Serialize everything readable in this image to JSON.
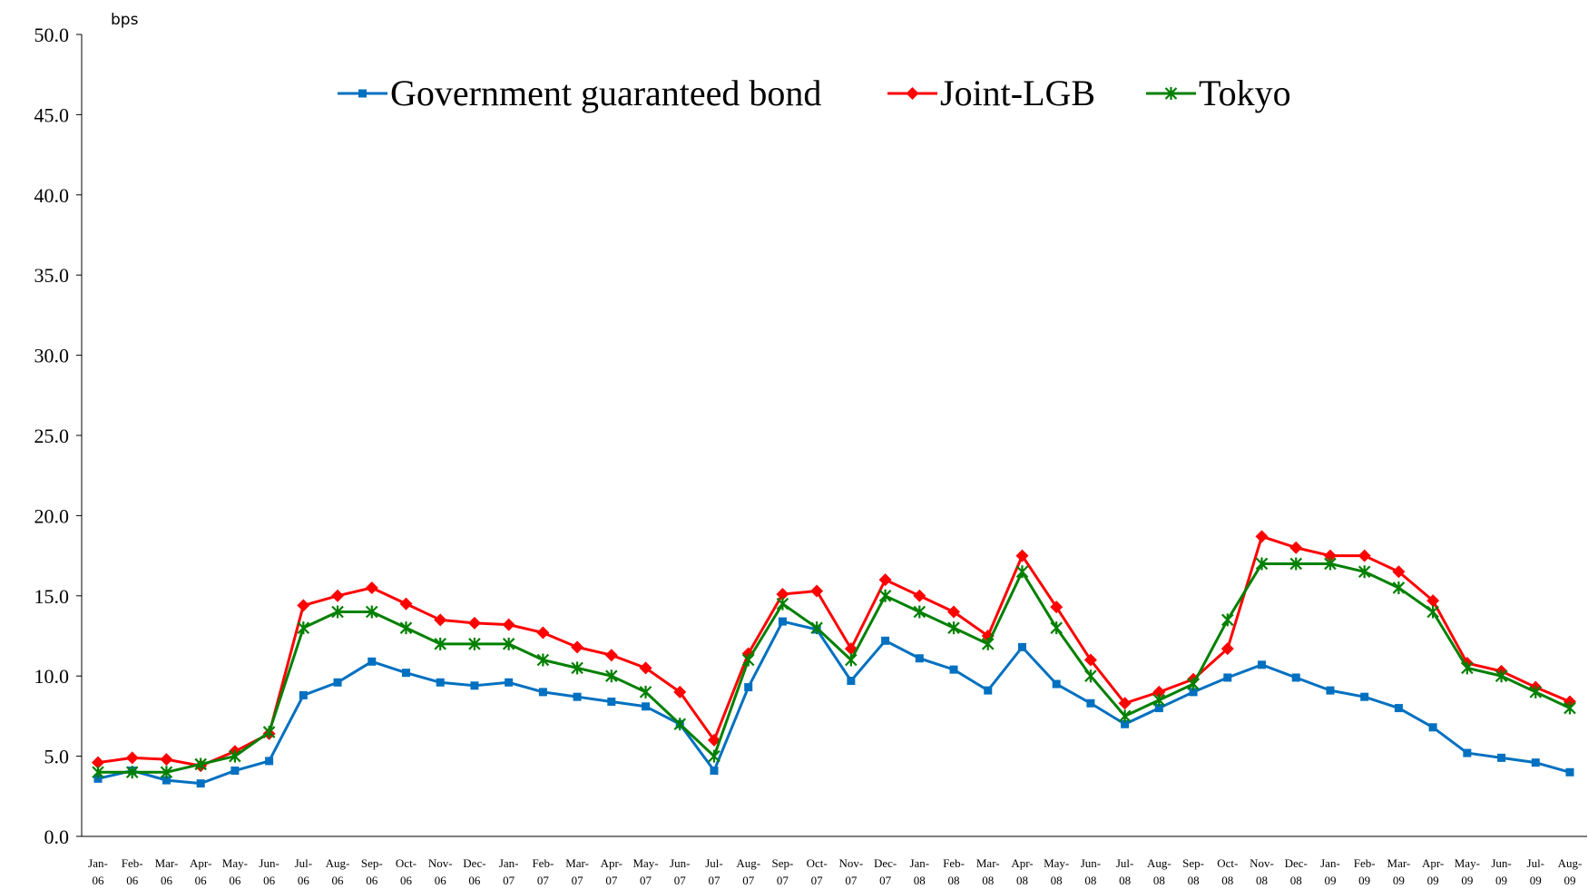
{
  "chart_data": {
    "type": "line",
    "title": "",
    "ylabel": "bps",
    "xlabel": "",
    "ylim": [
      0,
      50
    ],
    "yticks": [
      "0.0",
      "5.0",
      "10.0",
      "15.0",
      "20.0",
      "25.0",
      "30.0",
      "35.0",
      "40.0",
      "45.0",
      "50.0"
    ],
    "grid": false,
    "legend_position": "top-center",
    "categories": [
      [
        "Jan-",
        "06"
      ],
      [
        "Feb-",
        "06"
      ],
      [
        "Mar-",
        "06"
      ],
      [
        "Apr-",
        "06"
      ],
      [
        "May-",
        "06"
      ],
      [
        "Jun-",
        "06"
      ],
      [
        "Jul-",
        "06"
      ],
      [
        "Aug-",
        "06"
      ],
      [
        "Sep-",
        "06"
      ],
      [
        "Oct-",
        "06"
      ],
      [
        "Nov-",
        "06"
      ],
      [
        "Dec-",
        "06"
      ],
      [
        "Jan-",
        "07"
      ],
      [
        "Feb-",
        "07"
      ],
      [
        "Mar-",
        "07"
      ],
      [
        "Apr-",
        "07"
      ],
      [
        "May-",
        "07"
      ],
      [
        "Jun-",
        "07"
      ],
      [
        "Jul-",
        "07"
      ],
      [
        "Aug-",
        "07"
      ],
      [
        "Sep-",
        "07"
      ],
      [
        "Oct-",
        "07"
      ],
      [
        "Nov-",
        "07"
      ],
      [
        "Dec-",
        "07"
      ],
      [
        "Jan-",
        "08"
      ],
      [
        "Feb-",
        "08"
      ],
      [
        "Mar-",
        "08"
      ],
      [
        "Apr-",
        "08"
      ],
      [
        "May-",
        "08"
      ],
      [
        "Jun-",
        "08"
      ],
      [
        "Jul-",
        "08"
      ],
      [
        "Aug-",
        "08"
      ],
      [
        "Sep-",
        "08"
      ],
      [
        "Oct-",
        "08"
      ],
      [
        "Nov-",
        "08"
      ],
      [
        "Dec-",
        "08"
      ],
      [
        "Jan-",
        "09"
      ],
      [
        "Feb-",
        "09"
      ],
      [
        "Mar-",
        "09"
      ],
      [
        "Apr-",
        "09"
      ],
      [
        "May-",
        "09"
      ],
      [
        "Jun-",
        "09"
      ],
      [
        "Jul-",
        "09"
      ],
      [
        "Aug-",
        "09"
      ]
    ],
    "series": [
      {
        "name": "Government guaranteed bond",
        "color": "#0070C0",
        "marker": "square",
        "values": [
          3.6,
          4.1,
          3.5,
          3.3,
          4.1,
          4.7,
          8.8,
          9.6,
          10.9,
          10.2,
          9.6,
          9.4,
          9.6,
          9.0,
          8.7,
          8.4,
          8.1,
          7.0,
          4.1,
          9.3,
          13.4,
          12.9,
          9.7,
          12.2,
          11.1,
          10.4,
          9.1,
          11.8,
          9.5,
          8.3,
          7.0,
          8.0,
          9.0,
          9.9,
          10.7,
          9.9,
          9.1,
          8.7,
          8.0,
          6.8,
          5.2,
          4.9,
          4.6,
          4.0
        ]
      },
      {
        "name": "Joint-LGB",
        "color": "#FF0000",
        "marker": "diamond",
        "values": [
          4.6,
          4.9,
          4.8,
          4.4,
          5.3,
          6.4,
          14.4,
          15.0,
          15.5,
          14.5,
          13.5,
          13.3,
          13.2,
          12.7,
          11.8,
          11.3,
          10.5,
          9.0,
          6.0,
          11.4,
          15.1,
          15.3,
          11.7,
          16.0,
          15.0,
          14.0,
          12.5,
          17.5,
          14.3,
          11.0,
          8.3,
          9.0,
          9.8,
          11.7,
          18.7,
          18.0,
          17.5,
          17.5,
          16.5,
          14.7,
          10.8,
          10.3,
          9.3,
          8.4
        ]
      },
      {
        "name": "Tokyo",
        "color": "#008000",
        "marker": "star",
        "values": [
          4.0,
          4.0,
          4.0,
          4.5,
          5.0,
          6.5,
          13.0,
          14.0,
          14.0,
          13.0,
          12.0,
          12.0,
          12.0,
          11.0,
          10.5,
          10.0,
          9.0,
          7.0,
          5.0,
          11.0,
          14.5,
          13.0,
          11.0,
          15.0,
          14.0,
          13.0,
          12.0,
          16.5,
          13.0,
          10.0,
          7.5,
          8.5,
          9.5,
          13.5,
          17.0,
          17.0,
          17.0,
          16.5,
          15.5,
          14.0,
          10.5,
          10.0,
          9.0,
          8.0
        ]
      }
    ]
  }
}
